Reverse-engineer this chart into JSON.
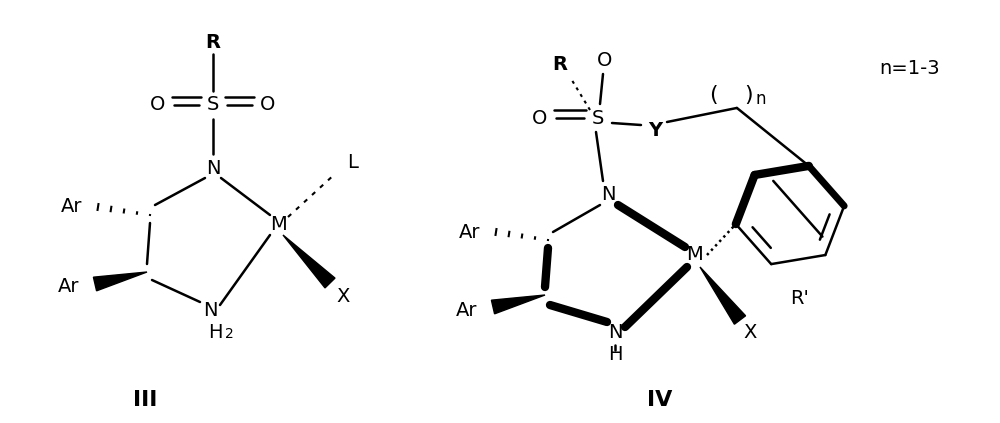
{
  "background_color": "#ffffff",
  "figsize": [
    10.0,
    4.23
  ],
  "dpi": 100,
  "label_III": "III",
  "label_IV": "IV",
  "n_label": "n=1-3"
}
